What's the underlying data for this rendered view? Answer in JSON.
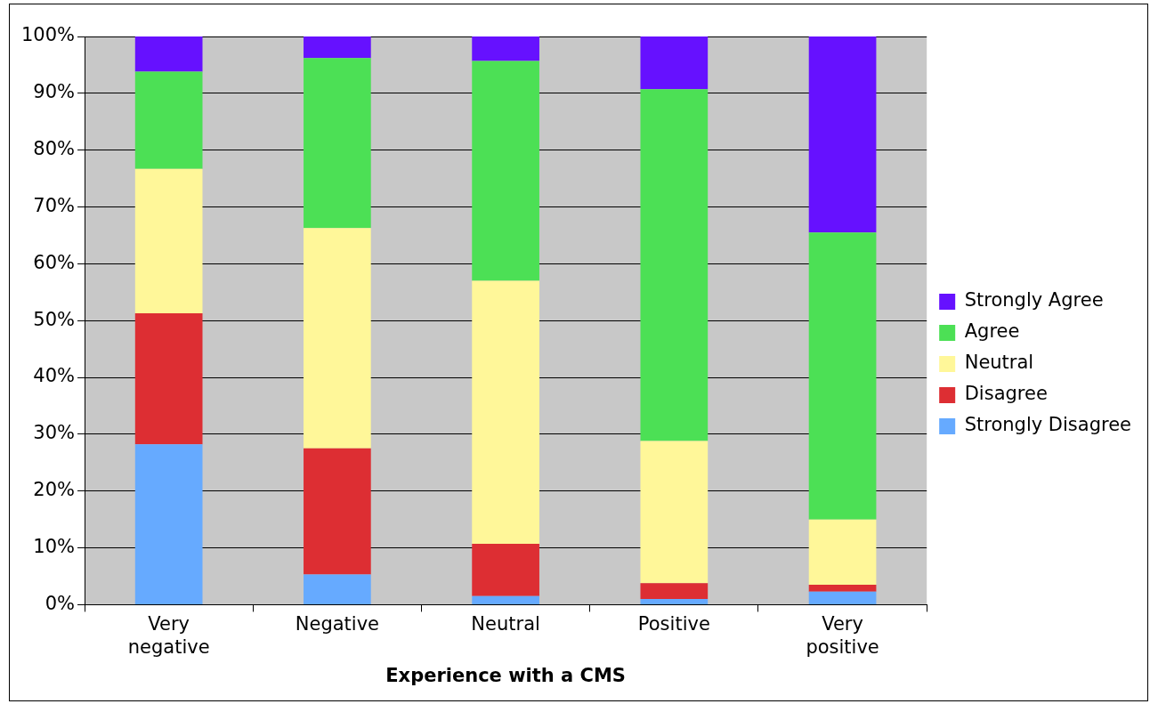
{
  "chart_data": {
    "type": "bar",
    "stacked": true,
    "xlabel": "Experience with a CMS",
    "categories": [
      "Very negative",
      "Negative",
      "Neutral",
      "Positive",
      "Very positive"
    ],
    "series": [
      {
        "name": "Strongly Disagree",
        "color": "#66aaff",
        "values": [
          28.2,
          5.3,
          1.5,
          1.0,
          2.3
        ]
      },
      {
        "name": "Disagree",
        "color": "#dd2e33",
        "values": [
          23.1,
          22.2,
          9.2,
          2.8,
          1.2
        ]
      },
      {
        "name": "Neutral",
        "color": "#fff799",
        "values": [
          25.4,
          38.8,
          46.3,
          25.0,
          11.5
        ]
      },
      {
        "name": "Agree",
        "color": "#4ce055",
        "values": [
          17.1,
          29.9,
          38.7,
          61.9,
          50.5
        ]
      },
      {
        "name": "Strongly Agree",
        "color": "#6611ff",
        "values": [
          6.2,
          3.8,
          4.3,
          9.3,
          34.5
        ]
      }
    ],
    "ylim": [
      0,
      100
    ],
    "yticks": [
      {
        "value": 0,
        "label": "0%"
      },
      {
        "value": 10,
        "label": "10%"
      },
      {
        "value": 20,
        "label": "20%"
      },
      {
        "value": 30,
        "label": "30%"
      },
      {
        "value": 40,
        "label": "40%"
      },
      {
        "value": 50,
        "label": "50%"
      },
      {
        "value": 60,
        "label": "60%"
      },
      {
        "value": 70,
        "label": "70%"
      },
      {
        "value": 80,
        "label": "80%"
      },
      {
        "value": 90,
        "label": "90%"
      },
      {
        "value": 100,
        "label": "100%"
      }
    ],
    "grid": "y",
    "legend": "right"
  }
}
